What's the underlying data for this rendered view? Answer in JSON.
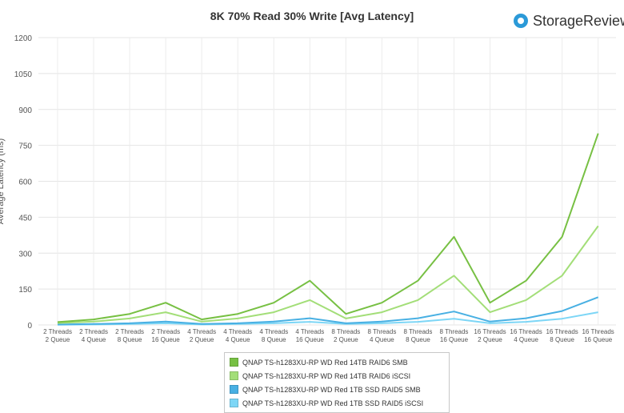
{
  "header": {
    "title": "8K 70% Read 30% Write [Avg Latency]",
    "brand": "StorageReview"
  },
  "chart_data": {
    "type": "line",
    "title": "8K 70% Read 30% Write [Avg Latency]",
    "ylabel": "Average Latency (ms)",
    "xlabel": "",
    "ylim": [
      0,
      1200
    ],
    "yticks": [
      0,
      150,
      300,
      450,
      600,
      750,
      900,
      1050,
      1200
    ],
    "grid": true,
    "legend_position": "bottom",
    "categories": [
      [
        "2 Threads",
        "2 Queue"
      ],
      [
        "2 Threads",
        "4 Queue"
      ],
      [
        "2 Threads",
        "8 Queue"
      ],
      [
        "2 Threads",
        "16 Queue"
      ],
      [
        "4 Threads",
        "2 Queue"
      ],
      [
        "4 Threads",
        "4 Queue"
      ],
      [
        "4 Threads",
        "8 Queue"
      ],
      [
        "4 Threads",
        "16 Queue"
      ],
      [
        "8 Threads",
        "2 Queue"
      ],
      [
        "8 Threads",
        "4 Queue"
      ],
      [
        "8 Threads",
        "8 Queue"
      ],
      [
        "8 Threads",
        "16 Queue"
      ],
      [
        "16 Threads",
        "2 Queue"
      ],
      [
        "16 Threads",
        "4 Queue"
      ],
      [
        "16 Threads",
        "8 Queue"
      ],
      [
        "16 Threads",
        "16 Queue"
      ]
    ],
    "series": [
      {
        "name": "QNAP TS-h1283XU-RP WD Red 14TB RAID6 SMB",
        "color": "#77c043",
        "values": [
          12,
          23,
          46,
          93,
          23,
          46,
          93,
          185,
          46,
          93,
          185,
          368,
          93,
          185,
          368,
          800
        ]
      },
      {
        "name": "QNAP TS-h1283XU-RP WD Red 14TB RAID6 iSCSI",
        "color": "#a3de78",
        "values": [
          8,
          14,
          27,
          53,
          14,
          27,
          53,
          104,
          27,
          53,
          104,
          206,
          53,
          104,
          206,
          413
        ]
      },
      {
        "name": "QNAP TS-h1283XU-RP WD Red 1TB SSD RAID5 SMB",
        "color": "#48b0e3",
        "values": [
          2,
          4,
          7,
          14,
          4,
          7,
          14,
          28,
          7,
          14,
          28,
          56,
          14,
          28,
          58,
          116
        ]
      },
      {
        "name": "QNAP TS-h1283XU-RP WD Red 1TB SSD RAID5 iSCSI",
        "color": "#7dd6f6",
        "values": [
          1,
          2,
          4,
          7,
          2,
          4,
          7,
          13,
          4,
          7,
          13,
          26,
          7,
          13,
          26,
          53
        ]
      }
    ]
  }
}
